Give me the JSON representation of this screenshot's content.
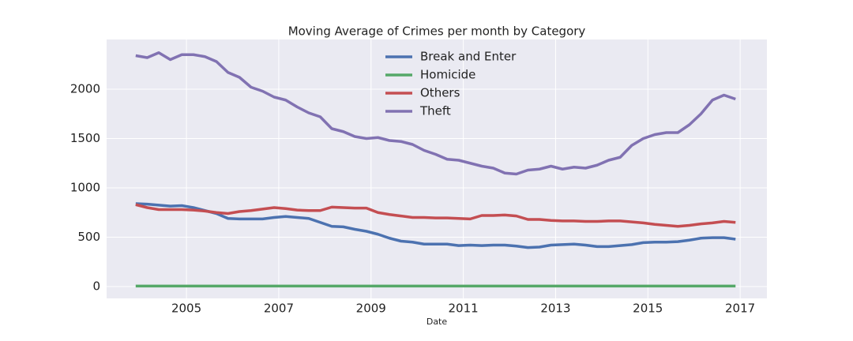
{
  "chart_data": {
    "type": "line",
    "title": "Moving Average of Crimes per month by Category",
    "x_label": "Date",
    "x": [
      2003.9,
      2004.15,
      2004.4,
      2004.65,
      2004.9,
      2005.15,
      2005.4,
      2005.65,
      2005.9,
      2006.15,
      2006.4,
      2006.65,
      2006.9,
      2007.15,
      2007.4,
      2007.65,
      2007.9,
      2008.15,
      2008.4,
      2008.65,
      2008.9,
      2009.15,
      2009.4,
      2009.65,
      2009.9,
      2010.15,
      2010.4,
      2010.65,
      2010.9,
      2011.15,
      2011.4,
      2011.65,
      2011.9,
      2012.15,
      2012.4,
      2012.65,
      2012.9,
      2013.15,
      2013.4,
      2013.65,
      2013.9,
      2014.15,
      2014.4,
      2014.65,
      2014.9,
      2015.15,
      2015.4,
      2015.65,
      2015.9,
      2016.15,
      2016.4,
      2016.65,
      2016.9
    ],
    "series": [
      {
        "name": "Break and Enter",
        "color": "#4c72b0",
        "values": [
          840,
          835,
          825,
          815,
          820,
          800,
          770,
          740,
          690,
          685,
          685,
          685,
          700,
          710,
          700,
          690,
          650,
          610,
          605,
          580,
          560,
          530,
          490,
          460,
          450,
          430,
          430,
          430,
          415,
          420,
          415,
          420,
          420,
          410,
          395,
          400,
          420,
          425,
          430,
          420,
          405,
          405,
          415,
          425,
          445,
          450,
          450,
          455,
          470,
          490,
          495,
          495,
          480
        ]
      },
      {
        "name": "Homicide",
        "color": "#55a868",
        "values": [
          5,
          5,
          5,
          5,
          5,
          5,
          5,
          5,
          5,
          5,
          5,
          5,
          5,
          5,
          5,
          5,
          5,
          5,
          5,
          5,
          5,
          5,
          5,
          5,
          5,
          5,
          5,
          5,
          5,
          5,
          5,
          5,
          5,
          5,
          5,
          5,
          5,
          5,
          5,
          5,
          5,
          5,
          5,
          5,
          5,
          5,
          5,
          5,
          5,
          5,
          5,
          5,
          5
        ]
      },
      {
        "name": "Others",
        "color": "#c44e52",
        "values": [
          830,
          800,
          780,
          780,
          780,
          775,
          765,
          750,
          740,
          760,
          770,
          785,
          800,
          790,
          775,
          770,
          770,
          805,
          800,
          795,
          795,
          750,
          730,
          715,
          700,
          700,
          695,
          695,
          690,
          685,
          720,
          720,
          725,
          715,
          680,
          680,
          670,
          665,
          665,
          660,
          660,
          665,
          665,
          655,
          645,
          630,
          620,
          610,
          620,
          635,
          645,
          660,
          650
        ]
      },
      {
        "name": "Theft",
        "color": "#8172b2",
        "values": [
          2340,
          2320,
          2370,
          2300,
          2350,
          2350,
          2330,
          2280,
          2170,
          2120,
          2020,
          1980,
          1920,
          1890,
          1820,
          1760,
          1720,
          1600,
          1570,
          1520,
          1500,
          1510,
          1480,
          1470,
          1440,
          1380,
          1340,
          1290,
          1280,
          1250,
          1220,
          1200,
          1150,
          1140,
          1180,
          1190,
          1220,
          1190,
          1210,
          1200,
          1230,
          1280,
          1310,
          1430,
          1500,
          1540,
          1560,
          1560,
          1640,
          1750,
          1890,
          1940,
          1900
        ]
      }
    ],
    "xlim": [
      2003.27,
      2017.58
    ],
    "xticks": [
      2005,
      2007,
      2009,
      2011,
      2013,
      2015,
      2017
    ],
    "ylim": [
      -120,
      2504
    ],
    "yticks": [
      0,
      500,
      1000,
      1500,
      2000
    ],
    "grid": true,
    "legend": "upper center",
    "background": "#eaeaf2"
  }
}
